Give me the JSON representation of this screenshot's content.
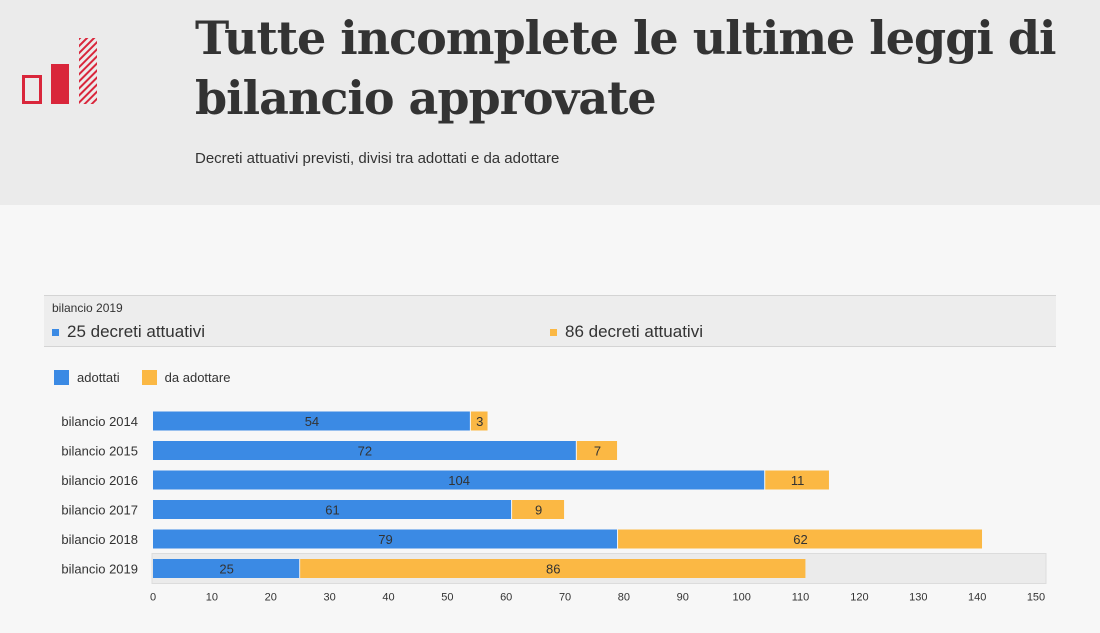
{
  "header": {
    "title": "Tutte incomplete le ultime leggi di bilancio approvate",
    "subtitle": "Decreti attuativi previsti, divisi tra adottati e da adottare"
  },
  "infobox": {
    "label": "bilancio 2019",
    "adottati_text": "25 decreti attuativi",
    "da_adottare_text": "86 decreti attuativi"
  },
  "colors": {
    "adottati": "#3b8ae4",
    "da_adottare": "#fbb844",
    "highlight_row": "#ebebeb",
    "logo_red": "#d9263b"
  },
  "chart_data": {
    "type": "bar",
    "orientation": "horizontal",
    "stacked": true,
    "categories": [
      "bilancio 2014",
      "bilancio 2015",
      "bilancio 2016",
      "bilancio 2017",
      "bilancio 2018",
      "bilancio 2019"
    ],
    "series": [
      {
        "name": "adottati",
        "values": [
          54,
          72,
          104,
          61,
          79,
          25
        ]
      },
      {
        "name": "da adottare",
        "values": [
          3,
          7,
          11,
          9,
          62,
          86
        ]
      }
    ],
    "xlim": [
      0,
      150
    ],
    "xticks": [
      0,
      10,
      20,
      30,
      40,
      50,
      60,
      70,
      80,
      90,
      100,
      110,
      120,
      130,
      140,
      150
    ],
    "highlighted_category": "bilancio 2019",
    "legend_position": "top-left",
    "grid": false
  }
}
